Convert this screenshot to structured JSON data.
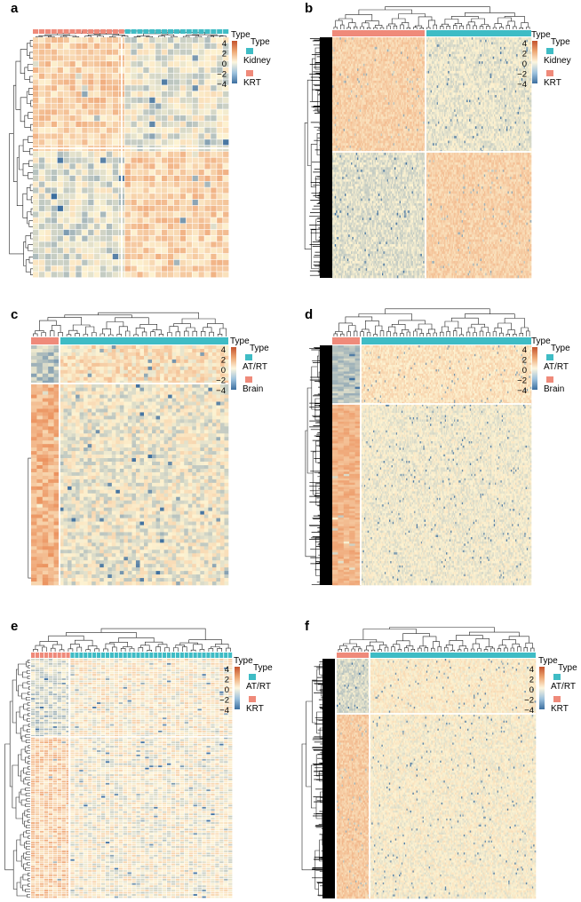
{
  "figure": {
    "panels": [
      {
        "letter": "a",
        "legend_title": "Type",
        "groups": [
          {
            "label": "Kidney",
            "color": "#3fbcc5"
          },
          {
            "label": "KRT",
            "color": "#ef8a7a"
          }
        ],
        "scale_ticks": [
          "4",
          "2",
          "0",
          "−2",
          "−4"
        ]
      },
      {
        "letter": "b",
        "legend_title": "Type",
        "groups": [
          {
            "label": "Kidney",
            "color": "#3fbcc5"
          },
          {
            "label": "KRT",
            "color": "#ef8a7a"
          }
        ],
        "scale_ticks": [
          "4",
          "2",
          "0",
          "−2",
          "−4"
        ]
      },
      {
        "letter": "c",
        "legend_title": "Type",
        "groups": [
          {
            "label": "AT/RT",
            "color": "#3fbcc5"
          },
          {
            "label": "Brain",
            "color": "#ef8a7a"
          }
        ],
        "scale_ticks": [
          "4",
          "2",
          "0",
          "−2",
          "−4"
        ]
      },
      {
        "letter": "d",
        "legend_title": "Type",
        "groups": [
          {
            "label": "AT/RT",
            "color": "#3fbcc5"
          },
          {
            "label": "Brain",
            "color": "#ef8a7a"
          }
        ],
        "scale_ticks": [
          "4",
          "2",
          "0",
          "−2",
          "−4"
        ]
      },
      {
        "letter": "e",
        "legend_title": "Type",
        "groups": [
          {
            "label": "AT/RT",
            "color": "#3fbcc5"
          },
          {
            "label": "KRT",
            "color": "#ef8a7a"
          }
        ],
        "scale_ticks": [
          "4",
          "2",
          "0",
          "−2",
          "−4"
        ]
      },
      {
        "letter": "f",
        "legend_title": "Type",
        "groups": [
          {
            "label": "AT/RT",
            "color": "#3fbcc5"
          },
          {
            "label": "KRT",
            "color": "#ef8a7a"
          }
        ],
        "scale_ticks": [
          "4",
          "2",
          "0",
          "−2",
          "−4"
        ]
      }
    ],
    "colors": {
      "high": "#e8814a",
      "mid": "#fdf3d2",
      "low": "#3c6e9f",
      "group_a": "#ef8a7a",
      "group_b": "#3fbcc5"
    }
  },
  "chart_data": [
    {
      "type": "heatmap",
      "panel": "a",
      "columns": {
        "KRT": 10,
        "Kidney": 22
      },
      "rows_top_block": 17,
      "rows_bottom_block": 23,
      "dendrograms": [
        "rows",
        "columns"
      ],
      "cell_borders": true,
      "color_scale": {
        "min": -4,
        "max": 4
      },
      "column_annotation": "Type"
    },
    {
      "type": "heatmap",
      "panel": "b",
      "columns": {
        "KRT": 10,
        "Kidney": 22
      },
      "rows_top_block": 160,
      "rows_bottom_block": 160,
      "dendrograms": [
        "rows",
        "columns"
      ],
      "cell_borders": false,
      "color_scale": {
        "min": -4,
        "max": 4
      },
      "column_annotation": "Type"
    },
    {
      "type": "heatmap",
      "panel": "c",
      "columns": {
        "Brain": 5,
        "AT/RT": 37
      },
      "rows_top_block": 11,
      "rows_bottom_block": 57,
      "dendrograms": [
        "rows",
        "columns"
      ],
      "cell_borders": false,
      "color_scale": {
        "min": -4,
        "max": 4
      },
      "column_annotation": "Type"
    },
    {
      "type": "heatmap",
      "panel": "d",
      "columns": {
        "Brain": 5,
        "AT/RT": 37
      },
      "rows_top_block": 80,
      "rows_bottom_block": 200,
      "dendrograms": [
        "rows",
        "columns"
      ],
      "cell_borders": false,
      "color_scale": {
        "min": -4,
        "max": 4
      },
      "column_annotation": "Type"
    },
    {
      "type": "heatmap",
      "panel": "e",
      "columns": {
        "KRT": 9,
        "AT/RT": 37
      },
      "rows_top_block": 36,
      "rows_bottom_block": 84,
      "dendrograms": [
        "rows",
        "columns"
      ],
      "cell_borders": true,
      "color_scale": {
        "min": -4,
        "max": 4
      },
      "column_annotation": "Type"
    },
    {
      "type": "heatmap",
      "panel": "f",
      "columns": {
        "KRT": 7,
        "AT/RT": 38
      },
      "rows_top_block": 80,
      "rows_bottom_block": 230,
      "dendrograms": [
        "rows",
        "columns"
      ],
      "cell_borders": false,
      "color_scale": {
        "min": -4,
        "max": 4
      },
      "column_annotation": "Type"
    }
  ]
}
